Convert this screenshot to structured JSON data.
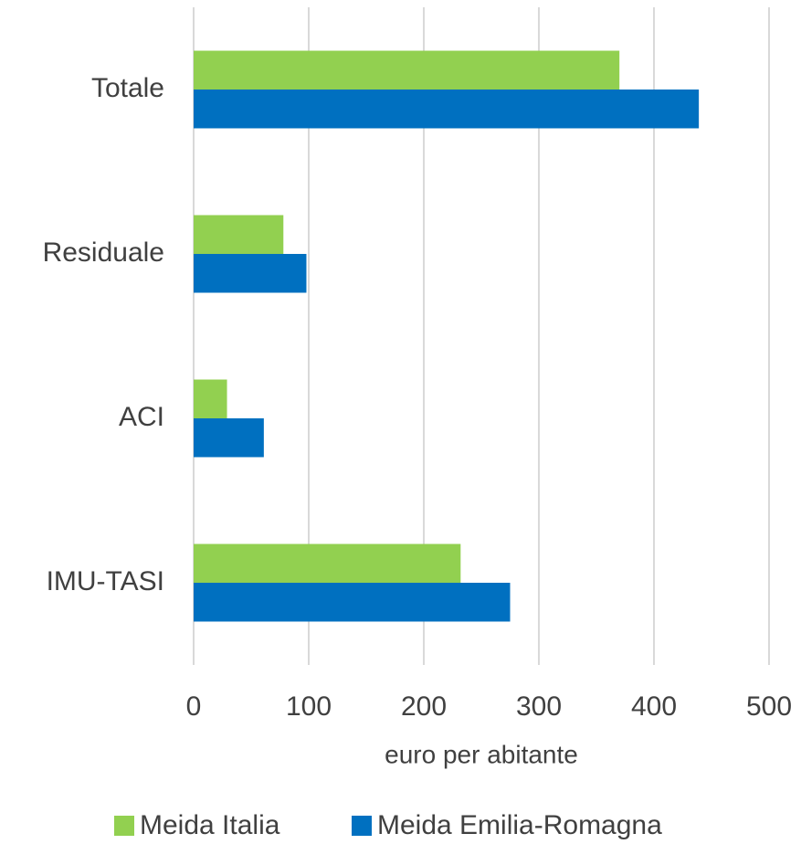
{
  "chart_data": {
    "type": "hbar",
    "categories": [
      "Totale",
      "Residuale",
      "ACI",
      "IMU-TASI"
    ],
    "series": [
      {
        "name": "Meida Italia",
        "color": "#92d050",
        "values": [
          370,
          78,
          29,
          232
        ]
      },
      {
        "name": "Meida Emilia-Romagna",
        "color": "#0070c0",
        "values": [
          439,
          98,
          61,
          275
        ]
      }
    ],
    "x_label": "euro per abitante",
    "xlim": [
      0,
      500
    ],
    "xticks": [
      0,
      100,
      200,
      300,
      400,
      500
    ],
    "grid": true,
    "legend": "bottom"
  }
}
